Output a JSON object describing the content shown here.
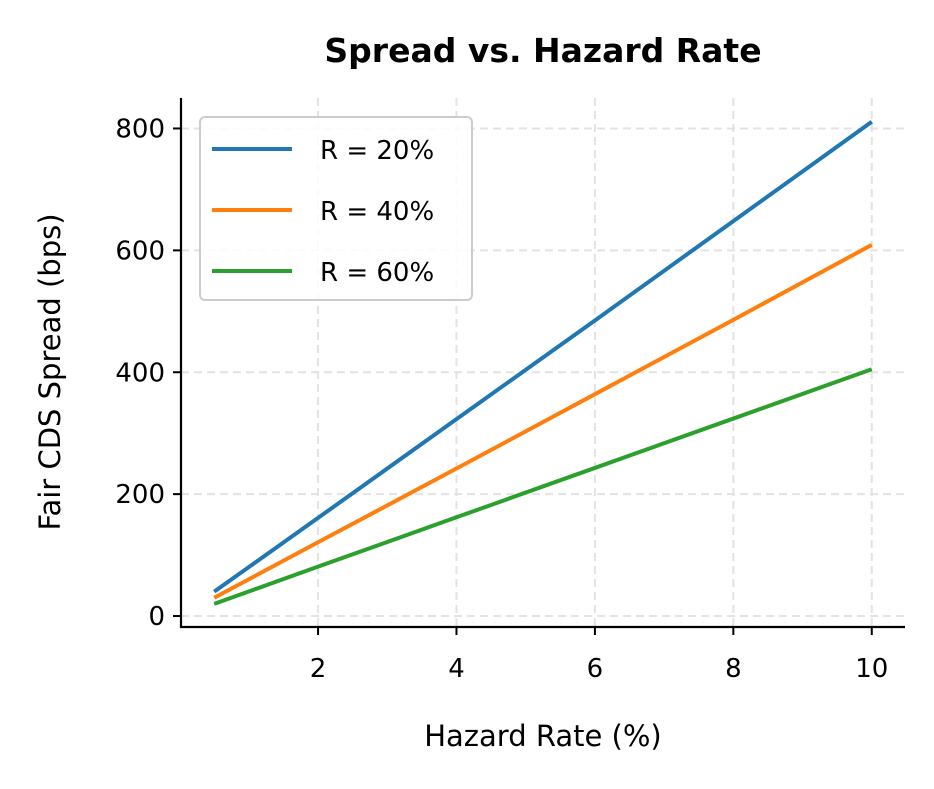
{
  "chart_data": {
    "type": "line",
    "title": "Spread vs. Hazard Rate",
    "xlabel": "Hazard Rate (%)",
    "ylabel": "Fair CDS Spread (bps)",
    "xlim": [
      0.02,
      10.48
    ],
    "ylim": [
      -18,
      850
    ],
    "xticks": [
      2,
      4,
      6,
      8,
      10
    ],
    "yticks": [
      0,
      200,
      400,
      600,
      800
    ],
    "grid": true,
    "legend_position": "top-left",
    "x": [
      0.5,
      2,
      4,
      6,
      8,
      10
    ],
    "series": [
      {
        "name": "R = 20%",
        "color": "#1f77b4",
        "values": [
          40,
          161,
          323,
          485,
          648,
          811
        ]
      },
      {
        "name": "R = 40%",
        "color": "#ff7f0e",
        "values": [
          30,
          121,
          242,
          364,
          486,
          609
        ]
      },
      {
        "name": "R = 60%",
        "color": "#2ca02c",
        "values": [
          20,
          81,
          162,
          243,
          324,
          405
        ]
      }
    ]
  }
}
